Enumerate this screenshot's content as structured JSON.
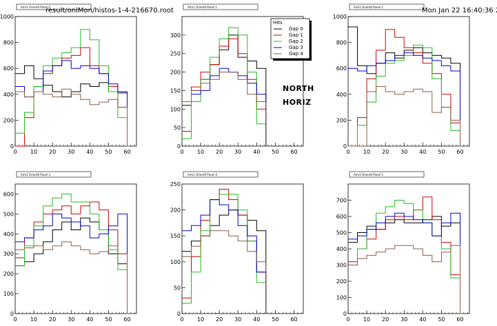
{
  "header": {
    "file_path": "result/onlMon/histos-1-4-216670.root",
    "timestamp": "Mon Jan 22 16:40:36 2007"
  },
  "labels": {
    "north": "NORTH",
    "horiz": "HORIZ"
  },
  "legend": {
    "title": "Hits",
    "entries": [
      "Gap 0",
      "Gap 1",
      "Gap 2",
      "Gap 3",
      "Gap 4"
    ]
  },
  "colors": {
    "Gap 0": "#000000",
    "Gap 1": "#cc0000",
    "Gap 2": "#22bb22",
    "Gap 3": "#0000cc",
    "Gap 4": "#8b5a44"
  },
  "chart_data": [
    {
      "type": "line",
      "title": "Arm1 Orient0 Panel 0",
      "xlim": [
        0,
        65
      ],
      "ylim": [
        0,
        1000
      ],
      "xticks": [
        0,
        10,
        20,
        30,
        40,
        50,
        60
      ],
      "yticks": [
        0,
        200,
        400,
        600,
        800,
        1000
      ],
      "series": [
        {
          "name": "Gap 0",
          "x": [
            0,
            5,
            10,
            15,
            20,
            25,
            30,
            35,
            40,
            45,
            50,
            55,
            60
          ],
          "y": [
            560,
            620,
            520,
            470,
            420,
            380,
            420,
            480,
            460,
            490,
            420,
            410,
            0
          ]
        },
        {
          "name": "Gap 1",
          "x": [
            0,
            5,
            10,
            15,
            20,
            25,
            30,
            35,
            40,
            45,
            50,
            55,
            60
          ],
          "y": [
            0,
            220,
            420,
            560,
            620,
            680,
            700,
            760,
            620,
            560,
            460,
            300,
            0
          ]
        },
        {
          "name": "Gap 2",
          "x": [
            0,
            5,
            10,
            15,
            20,
            25,
            30,
            35,
            40,
            45,
            50,
            55,
            60
          ],
          "y": [
            100,
            260,
            460,
            620,
            680,
            720,
            760,
            900,
            820,
            620,
            420,
            220,
            0
          ]
        },
        {
          "name": "Gap 3",
          "x": [
            0,
            5,
            10,
            15,
            20,
            25,
            30,
            35,
            40,
            45,
            50,
            55,
            60
          ],
          "y": [
            460,
            380,
            420,
            580,
            620,
            660,
            600,
            620,
            600,
            560,
            480,
            420,
            0
          ]
        },
        {
          "name": "Gap 4",
          "x": [
            0,
            5,
            10,
            15,
            20,
            25,
            30,
            35,
            40,
            45,
            50,
            55,
            60
          ],
          "y": [
            420,
            380,
            420,
            400,
            380,
            440,
            400,
            360,
            320,
            340,
            360,
            300,
            0
          ]
        }
      ]
    },
    {
      "type": "line",
      "title": "Arm1 Orient0 Panel 1",
      "xlim": [
        0,
        65
      ],
      "ylim": [
        0,
        350
      ],
      "xticks": [
        0,
        10,
        20,
        30,
        40,
        50,
        60
      ],
      "yticks": [
        0,
        50,
        100,
        150,
        200,
        250,
        300
      ],
      "series": [
        {
          "name": "Gap 0",
          "x": [
            0,
            5,
            10,
            15,
            20,
            25,
            30,
            35,
            40,
            45
          ],
          "y": [
            110,
            150,
            180,
            220,
            260,
            300,
            240,
            230,
            210,
            0
          ]
        },
        {
          "name": "Gap 1",
          "x": [
            0,
            5,
            10,
            15,
            20,
            25,
            30,
            35,
            40,
            45
          ],
          "y": [
            40,
            160,
            200,
            220,
            270,
            290,
            250,
            180,
            100,
            0
          ]
        },
        {
          "name": "Gap 2",
          "x": [
            0,
            5,
            10,
            15,
            20,
            25,
            30,
            35,
            40,
            45
          ],
          "y": [
            20,
            120,
            180,
            240,
            290,
            320,
            300,
            200,
            60,
            0
          ]
        },
        {
          "name": "Gap 3",
          "x": [
            0,
            5,
            10,
            15,
            20,
            25,
            30,
            35,
            40,
            45
          ],
          "y": [
            120,
            140,
            150,
            190,
            210,
            200,
            190,
            170,
            140,
            0
          ]
        },
        {
          "name": "Gap 4",
          "x": [
            0,
            5,
            10,
            15,
            20,
            25,
            30,
            35,
            40,
            45
          ],
          "y": [
            120,
            150,
            170,
            180,
            200,
            200,
            180,
            140,
            120,
            0
          ]
        }
      ]
    },
    {
      "type": "line",
      "title": "Arm1 Orient0 Panel 2",
      "xlim": [
        0,
        65
      ],
      "ylim": [
        0,
        1000
      ],
      "xticks": [
        0,
        10,
        20,
        30,
        40,
        50,
        60
      ],
      "yticks": [
        0,
        200,
        400,
        600,
        800,
        1000
      ],
      "series": [
        {
          "name": "Gap 0",
          "x": [
            0,
            5,
            10,
            15,
            20,
            25,
            30,
            35,
            40,
            45,
            50,
            55,
            60
          ],
          "y": [
            920,
            620,
            560,
            640,
            720,
            680,
            740,
            760,
            720,
            700,
            680,
            640,
            0
          ]
        },
        {
          "name": "Gap 1",
          "x": [
            0,
            5,
            10,
            15,
            20,
            25,
            30,
            35,
            40,
            45,
            50,
            55,
            60
          ],
          "y": [
            0,
            220,
            520,
            740,
            900,
            840,
            760,
            720,
            640,
            560,
            400,
            180,
            0
          ]
        },
        {
          "name": "Gap 2",
          "x": [
            0,
            5,
            10,
            15,
            20,
            25,
            30,
            35,
            40,
            45,
            50,
            55,
            60
          ],
          "y": [
            0,
            160,
            340,
            540,
            640,
            660,
            700,
            780,
            760,
            520,
            300,
            120,
            0
          ]
        },
        {
          "name": "Gap 3",
          "x": [
            0,
            5,
            10,
            15,
            20,
            25,
            30,
            35,
            40,
            45,
            50,
            55,
            60
          ],
          "y": [
            600,
            580,
            620,
            640,
            660,
            700,
            720,
            700,
            680,
            660,
            620,
            580,
            0
          ]
        },
        {
          "name": "Gap 4",
          "x": [
            0,
            5,
            10,
            15,
            20,
            25,
            30,
            35,
            40,
            45,
            50,
            55,
            60
          ],
          "y": [
            0,
            0,
            420,
            460,
            420,
            400,
            420,
            440,
            420,
            260,
            300,
            200,
            0
          ]
        }
      ]
    },
    {
      "type": "line",
      "title": "Arm1 Orient0 Panel 3",
      "xlim": [
        0,
        65
      ],
      "ylim": [
        0,
        650
      ],
      "xticks": [
        0,
        10,
        20,
        30,
        40,
        50,
        60
      ],
      "yticks": [
        0,
        100,
        200,
        300,
        400,
        500,
        600
      ],
      "series": [
        {
          "name": "Gap 0",
          "x": [
            0,
            5,
            10,
            15,
            20,
            25,
            30,
            35,
            40,
            45,
            50,
            55,
            60
          ],
          "y": [
            240,
            260,
            300,
            360,
            420,
            460,
            420,
            480,
            460,
            420,
            300,
            250,
            0
          ]
        },
        {
          "name": "Gap 1",
          "x": [
            0,
            5,
            10,
            15,
            20,
            25,
            30,
            35,
            40,
            45,
            50,
            55,
            60
          ],
          "y": [
            280,
            380,
            460,
            500,
            520,
            540,
            500,
            540,
            560,
            520,
            420,
            300,
            0
          ]
        },
        {
          "name": "Gap 2",
          "x": [
            0,
            5,
            10,
            15,
            20,
            25,
            30,
            35,
            40,
            45,
            50,
            55,
            60
          ],
          "y": [
            240,
            340,
            440,
            540,
            580,
            600,
            560,
            560,
            500,
            420,
            320,
            220,
            0
          ]
        },
        {
          "name": "Gap 3",
          "x": [
            0,
            5,
            10,
            15,
            20,
            25,
            30,
            35,
            40,
            45,
            50,
            55,
            60
          ],
          "y": [
            360,
            380,
            420,
            440,
            500,
            480,
            460,
            440,
            380,
            400,
            440,
            500,
            0
          ]
        },
        {
          "name": "Gap 4",
          "x": [
            0,
            5,
            10,
            15,
            20,
            25,
            30,
            35,
            40,
            45,
            50,
            55,
            60
          ],
          "y": [
            320,
            330,
            340,
            320,
            340,
            360,
            340,
            320,
            300,
            310,
            340,
            300,
            0
          ]
        }
      ]
    },
    {
      "type": "line",
      "title": "Arm1 Orient0 Panel 4",
      "xlim": [
        0,
        65
      ],
      "ylim": [
        0,
        250
      ],
      "xticks": [
        0,
        10,
        20,
        30,
        40,
        50,
        60
      ],
      "yticks": [
        0,
        50,
        100,
        150,
        200,
        250
      ],
      "series": [
        {
          "name": "Gap 0",
          "x": [
            0,
            5,
            10,
            15,
            20,
            25,
            30,
            35,
            40,
            45
          ],
          "y": [
            120,
            140,
            150,
            170,
            190,
            200,
            190,
            180,
            160,
            0
          ]
        },
        {
          "name": "Gap 1",
          "x": [
            0,
            5,
            10,
            15,
            20,
            25,
            30,
            35,
            40,
            45
          ],
          "y": [
            30,
            110,
            180,
            220,
            240,
            220,
            190,
            140,
            80,
            0
          ]
        },
        {
          "name": "Gap 2",
          "x": [
            0,
            5,
            10,
            15,
            20,
            25,
            30,
            35,
            40,
            45
          ],
          "y": [
            20,
            80,
            160,
            220,
            230,
            230,
            200,
            140,
            60,
            0
          ]
        },
        {
          "name": "Gap 3",
          "x": [
            0,
            5,
            10,
            15,
            20,
            25,
            30,
            35,
            40,
            45
          ],
          "y": [
            160,
            170,
            190,
            220,
            210,
            200,
            170,
            150,
            80,
            0
          ]
        },
        {
          "name": "Gap 4",
          "x": [
            0,
            5,
            10,
            15,
            20,
            25,
            30,
            35,
            40,
            45
          ],
          "y": [
            110,
            130,
            150,
            160,
            160,
            150,
            140,
            120,
            100,
            0
          ]
        }
      ]
    },
    {
      "type": "line",
      "title": "Arm1 Orient0 Panel 5",
      "xlim": [
        0,
        65
      ],
      "ylim": [
        0,
        800
      ],
      "xticks": [
        0,
        10,
        20,
        30,
        40,
        50,
        60
      ],
      "yticks": [
        0,
        100,
        200,
        300,
        400,
        500,
        600,
        700
      ],
      "series": [
        {
          "name": "Gap 0",
          "x": [
            0,
            5,
            10,
            15,
            20,
            25,
            30,
            35,
            40,
            45,
            50,
            55,
            60
          ],
          "y": [
            440,
            500,
            540,
            520,
            560,
            580,
            560,
            560,
            580,
            600,
            540,
            560,
            0
          ]
        },
        {
          "name": "Gap 1",
          "x": [
            0,
            5,
            10,
            15,
            20,
            25,
            30,
            35,
            40,
            45,
            50,
            55,
            60
          ],
          "y": [
            320,
            400,
            460,
            520,
            580,
            600,
            580,
            640,
            720,
            580,
            440,
            240,
            0
          ]
        },
        {
          "name": "Gap 2",
          "x": [
            0,
            5,
            10,
            15,
            20,
            25,
            30,
            35,
            40,
            45,
            50,
            55,
            60
          ],
          "y": [
            300,
            400,
            520,
            620,
            660,
            700,
            680,
            640,
            560,
            480,
            400,
            220,
            0
          ]
        },
        {
          "name": "Gap 3",
          "x": [
            0,
            5,
            10,
            15,
            20,
            25,
            30,
            35,
            40,
            45,
            50,
            55,
            60
          ],
          "y": [
            460,
            480,
            520,
            560,
            600,
            620,
            600,
            580,
            560,
            480,
            560,
            620,
            0
          ]
        },
        {
          "name": "Gap 4",
          "x": [
            0,
            5,
            10,
            15,
            20,
            25,
            30,
            35,
            40,
            45,
            50,
            55,
            60
          ],
          "y": [
            300,
            340,
            360,
            380,
            400,
            420,
            420,
            400,
            360,
            320,
            380,
            420,
            0
          ]
        }
      ]
    }
  ]
}
